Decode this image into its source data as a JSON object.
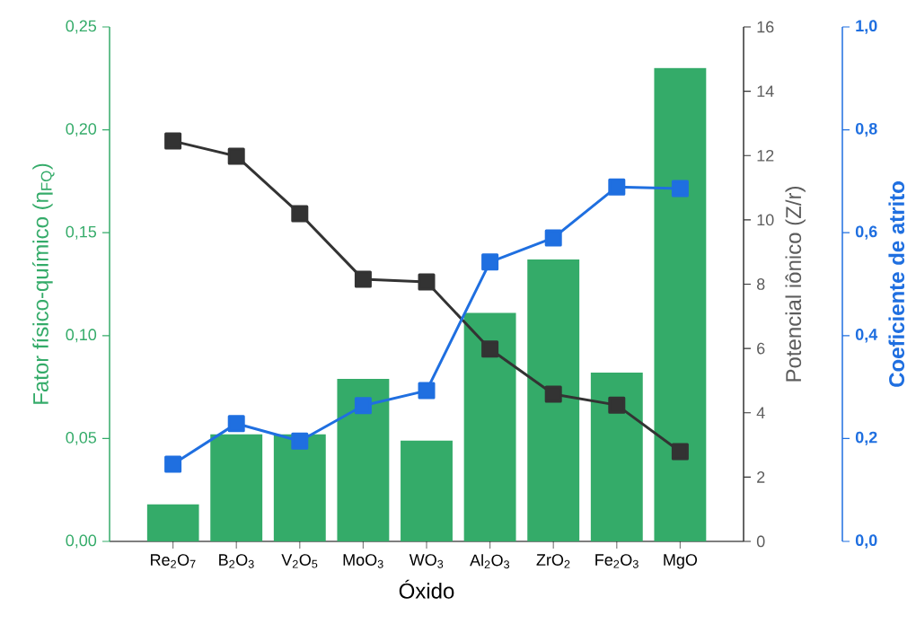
{
  "chart_data": {
    "type": "bar",
    "xlabel": "Óxido",
    "ylabel": "Fator físico-químico (η$_{FQ}$)",
    "y2label": "Potencial iônico (Z/r)",
    "y3label": "Coeficiente de atrito",
    "categories": [
      "Re$_{2}$O$_{7}$",
      "B$_{2}$O$_{3}$",
      "V$_{2}$O$_{5}$",
      "MoO$_{3}$",
      "WO$_{3}$",
      "Al$_{2}$O$_{3}$",
      "ZrO$_{2}$",
      "Fe$_{2}$O$_{3}$",
      "MgO"
    ],
    "ylim": [
      0,
      0.25
    ],
    "yticks": [
      {
        "value": 0,
        "label": "0,00"
      },
      {
        "value": 0.05,
        "label": "0,05"
      },
      {
        "value": 0.1,
        "label": "0,10"
      },
      {
        "value": 0.15,
        "label": "0,15"
      },
      {
        "value": 0.2,
        "label": "0,20"
      },
      {
        "value": 0.25,
        "label": "0,25"
      }
    ],
    "y2lim": [
      0,
      16
    ],
    "y2ticks": [
      0,
      2,
      4,
      6,
      8,
      10,
      12,
      14,
      16
    ],
    "y3lim": [
      0,
      1
    ],
    "y3ticks": [
      {
        "value": 0,
        "label": "0,0"
      },
      {
        "value": 0.2,
        "label": "0,2"
      },
      {
        "value": 0.4,
        "label": "0,4"
      },
      {
        "value": 0.6,
        "label": "0,6"
      },
      {
        "value": 0.8,
        "label": "0,8"
      },
      {
        "value": 1,
        "label": "1,0"
      }
    ],
    "marker": "square",
    "series": [
      {
        "axis": "y",
        "color": "#34ab69",
        "values": [
          0.018,
          0.052,
          0.052,
          0.079,
          0.049,
          0.111,
          0.137,
          0.082,
          0.23
        ]
      },
      {
        "type": "line",
        "axis": "y2",
        "color": "#333333",
        "values": [
          12.45,
          11.98,
          10.19,
          8.15,
          8.07,
          5.98,
          4.58,
          4.24,
          2.79
        ]
      },
      {
        "type": "line",
        "axis": "y3",
        "color": "#1f6fe0",
        "values": [
          0.15,
          0.229,
          0.195,
          0.264,
          0.293,
          0.543,
          0.59,
          0.689,
          0.686
        ]
      }
    ]
  }
}
